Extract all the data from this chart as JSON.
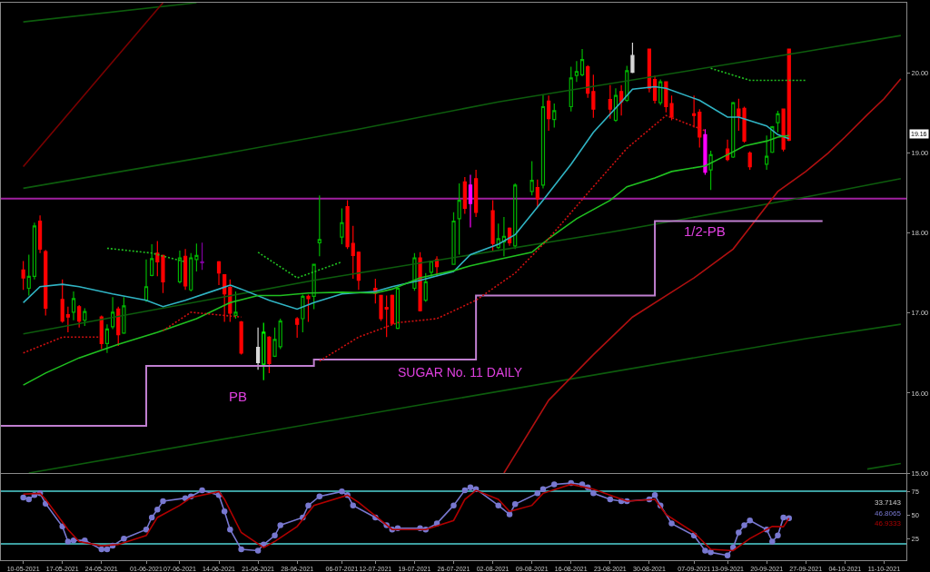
{
  "chart_data": [
    {
      "type": "candlestick",
      "x": [
        "2021-05-10",
        "2021-05-11",
        "2021-05-12",
        "2021-05-13",
        "2021-05-14",
        "2021-05-17",
        "2021-05-18",
        "2021-05-19",
        "2021-05-20",
        "2021-05-21",
        "2021-05-24",
        "2021-05-25",
        "2021-05-26",
        "2021-05-27",
        "2021-05-28",
        "2021-06-01",
        "2021-06-02",
        "2021-06-03",
        "2021-06-04",
        "2021-06-07",
        "2021-06-08",
        "2021-06-09",
        "2021-06-10",
        "2021-06-11",
        "2021-06-14",
        "2021-06-15",
        "2021-06-16",
        "2021-06-17",
        "2021-06-18",
        "2021-06-21",
        "2021-06-22",
        "2021-06-23",
        "2021-06-24",
        "2021-06-25",
        "2021-06-28",
        "2021-06-29",
        "2021-06-30",
        "2021-07-01",
        "2021-07-02",
        "2021-07-06",
        "2021-07-07",
        "2021-07-08",
        "2021-07-09",
        "2021-07-12",
        "2021-07-13",
        "2021-07-14",
        "2021-07-15",
        "2021-07-16",
        "2021-07-19",
        "2021-07-20",
        "2021-07-21",
        "2021-07-22",
        "2021-07-23",
        "2021-07-26",
        "2021-07-27",
        "2021-07-28",
        "2021-07-29",
        "2021-07-30",
        "2021-08-02",
        "2021-08-03",
        "2021-08-04",
        "2021-08-05",
        "2021-08-06",
        "2021-08-09",
        "2021-08-10",
        "2021-08-11",
        "2021-08-12",
        "2021-08-13",
        "2021-08-16",
        "2021-08-17",
        "2021-08-18",
        "2021-08-19",
        "2021-08-20",
        "2021-08-23",
        "2021-08-24",
        "2021-08-25",
        "2021-08-26",
        "2021-08-27",
        "2021-08-30",
        "2021-08-31",
        "2021-09-01",
        "2021-09-02",
        "2021-09-03",
        "2021-09-07",
        "2021-09-08",
        "2021-09-09",
        "2021-09-10",
        "2021-09-13",
        "2021-09-14",
        "2021-09-15",
        "2021-09-16",
        "2021-09-17",
        "2021-09-20",
        "2021-09-21",
        "2021-09-22",
        "2021-09-23",
        "2021-09-24"
      ],
      "ohlc": [
        [
          17.54,
          17.65,
          17.29,
          17.44
        ],
        [
          17.31,
          17.73,
          17.22,
          17.46
        ],
        [
          17.46,
          18.13,
          17.42,
          18.09
        ],
        [
          18.15,
          18.22,
          17.75,
          17.8
        ],
        [
          17.77,
          17.79,
          16.97,
          17.06
        ],
        [
          17.17,
          17.42,
          16.88,
          16.9
        ],
        [
          16.98,
          17.08,
          16.76,
          16.95
        ],
        [
          17.01,
          17.27,
          16.91,
          17.18
        ],
        [
          17.08,
          17.1,
          16.82,
          16.9
        ],
        [
          16.91,
          17.06,
          16.84,
          17.02
        ],
        [
          16.95,
          16.97,
          16.55,
          16.62
        ],
        [
          16.62,
          16.86,
          16.5,
          16.8
        ],
        [
          16.83,
          17.2,
          16.8,
          17.01
        ],
        [
          17.05,
          17.08,
          16.59,
          16.73
        ],
        [
          16.75,
          17.2,
          16.74,
          17.09
        ],
        [
          17.16,
          17.67,
          17.14,
          17.33
        ],
        [
          17.47,
          17.86,
          17.46,
          17.68
        ],
        [
          17.75,
          17.9,
          17.46,
          17.64
        ],
        [
          17.72,
          17.73,
          17.25,
          17.39
        ],
        [
          17.39,
          17.78,
          17.37,
          17.69
        ],
        [
          17.71,
          17.8,
          17.29,
          17.34
        ],
        [
          17.29,
          17.75,
          17.27,
          17.69
        ],
        [
          17.67,
          17.87,
          17.52,
          17.72
        ],
        [
          17.64,
          17.88,
          17.54,
          17.63
        ],
        [
          17.64,
          17.65,
          17.35,
          17.5
        ],
        [
          17.48,
          17.48,
          16.89,
          17.24
        ],
        [
          17.32,
          17.42,
          16.89,
          17.0
        ],
        [
          16.97,
          17.27,
          16.93,
          17.01
        ],
        [
          16.89,
          16.9,
          16.48,
          16.5
        ],
        [
          16.57,
          16.82,
          16.29,
          16.38
        ],
        [
          16.36,
          16.88,
          16.16,
          16.76
        ],
        [
          16.7,
          16.71,
          16.25,
          16.37
        ],
        [
          16.46,
          16.82,
          16.45,
          16.67
        ],
        [
          16.58,
          16.93,
          16.55,
          16.9
        ],
        [
          16.93,
          16.95,
          16.69,
          16.86
        ],
        [
          16.93,
          17.23,
          16.76,
          17.21
        ],
        [
          17.21,
          17.23,
          16.89,
          17.18
        ],
        [
          17.21,
          17.61,
          17.05,
          17.61
        ],
        [
          17.88,
          18.47,
          17.71,
          17.92
        ],
        [
          17.95,
          18.31,
          17.86,
          18.13
        ],
        [
          18.33,
          18.41,
          17.8,
          17.83
        ],
        [
          17.87,
          18.09,
          17.43,
          17.72
        ],
        [
          17.76,
          17.77,
          17.29,
          17.41
        ],
        [
          17.31,
          17.43,
          17.12,
          17.25
        ],
        [
          17.22,
          17.22,
          16.9,
          16.93
        ],
        [
          17.07,
          17.22,
          16.7,
          17.05
        ],
        [
          17.22,
          17.23,
          16.85,
          16.87
        ],
        [
          16.81,
          17.31,
          16.8,
          17.31
        ],
        [
          17.31,
          17.75,
          17.28,
          17.69
        ],
        [
          17.69,
          17.76,
          17.02,
          17.03
        ],
        [
          17.16,
          17.5,
          17.14,
          17.39
        ],
        [
          17.51,
          17.65,
          17.44,
          17.65
        ],
        [
          17.67,
          17.71,
          17.46,
          17.58
        ],
        [
          17.61,
          18.26,
          17.61,
          18.15
        ],
        [
          18.18,
          18.62,
          17.73,
          18.41
        ],
        [
          18.64,
          18.7,
          18.24,
          18.31
        ],
        [
          18.6,
          18.73,
          18.07,
          18.37
        ],
        [
          18.68,
          18.79,
          18.2,
          18.26
        ],
        [
          18.28,
          18.41,
          17.77,
          17.87
        ],
        [
          17.82,
          18.12,
          17.8,
          17.93
        ],
        [
          17.89,
          18.2,
          17.71,
          17.96
        ],
        [
          18.06,
          18.07,
          17.84,
          17.88
        ],
        [
          17.84,
          18.62,
          17.8,
          18.6
        ],
        [
          18.52,
          18.9,
          18.47,
          18.66
        ],
        [
          18.57,
          18.67,
          18.33,
          18.43
        ],
        [
          18.6,
          19.73,
          18.56,
          19.58
        ],
        [
          19.65,
          19.72,
          19.28,
          19.43
        ],
        [
          19.42,
          19.62,
          19.32,
          19.53
        ],
        [
          19.58,
          20.08,
          19.52,
          19.94
        ],
        [
          19.97,
          20.15,
          19.89,
          20.02
        ],
        [
          19.98,
          20.3,
          19.96,
          20.17
        ],
        [
          20.08,
          20.1,
          19.69,
          19.75
        ],
        [
          19.77,
          19.98,
          19.44,
          19.55
        ],
        [
          19.67,
          19.85,
          19.43,
          19.55
        ],
        [
          19.41,
          19.81,
          19.39,
          19.72
        ],
        [
          19.77,
          19.85,
          19.47,
          19.64
        ],
        [
          19.66,
          20.09,
          19.64,
          20.03
        ],
        [
          20.22,
          20.38,
          20.0,
          20.01
        ],
        [
          20.3,
          20.3,
          19.76,
          19.81
        ],
        [
          19.92,
          19.97,
          19.62,
          19.66
        ],
        [
          19.63,
          19.92,
          19.6,
          19.89
        ],
        [
          19.89,
          19.89,
          19.51,
          19.58
        ],
        [
          19.62,
          19.72,
          19.41,
          19.45
        ],
        [
          19.49,
          19.72,
          19.32,
          19.47
        ],
        [
          19.51,
          19.55,
          19.07,
          19.2
        ],
        [
          19.23,
          19.3,
          18.73,
          18.76
        ],
        [
          18.79,
          19.03,
          18.54,
          18.98
        ],
        [
          19.05,
          19.17,
          18.9,
          18.92
        ],
        [
          18.95,
          19.64,
          18.94,
          19.63
        ],
        [
          19.55,
          19.68,
          19.28,
          19.46
        ],
        [
          19.56,
          19.58,
          19.13,
          19.15
        ],
        [
          19.0,
          19.02,
          18.79,
          18.83
        ],
        [
          18.86,
          19.22,
          18.79,
          18.96
        ],
        [
          19.01,
          19.34,
          19.0,
          19.33
        ],
        [
          19.38,
          19.53,
          19.26,
          19.49
        ],
        [
          19.55,
          19.55,
          19.02,
          19.05
        ],
        [
          20.3,
          20.3,
          19.15,
          19.16
        ]
      ],
      "colors": [
        "#ff0000",
        "#00b400",
        "#00b400",
        "#ff0000",
        "#ff0000",
        "#ff0000",
        "#ff0000",
        "#00b400",
        "#ff0000",
        "#00b400",
        "#ff0000",
        "#00b400",
        "#00b400",
        "#ff0000",
        "#00b400",
        "#00b400",
        "#00b400",
        "#ff0000",
        "#ff0000",
        "#00b400",
        "#ff0000",
        "#00b400",
        "#00b400",
        "#8000a0",
        "#ff0000",
        "#ff0000",
        "#ff0000",
        "#00b400",
        "#ff0000",
        "#d8d8d8",
        "#00ff00",
        "#ff0000",
        "#00b400",
        "#00b400",
        "#ff0000",
        "#00b400",
        "#ff0000",
        "#00b400",
        "#00b400",
        "#00b400",
        "#ff0000",
        "#ff0000",
        "#ff0000",
        "#ff0000",
        "#ff0000",
        "#ff0000",
        "#ff0000",
        "#00b400",
        "#00b400",
        "#ff0000",
        "#00b400",
        "#00b400",
        "#ff0000",
        "#00b400",
        "#00b400",
        "#ff0000",
        "#ff00ff",
        "#ff0000",
        "#ff0000",
        "#00b400",
        "#00b400",
        "#ff0000",
        "#00b400",
        "#00b400",
        "#ff0000",
        "#00b400",
        "#ff0000",
        "#00b400",
        "#00b400",
        "#00b400",
        "#00b400",
        "#ff0000",
        "#ff0000",
        "#ff0000",
        "#00b400",
        "#ff0000",
        "#00b400",
        "#d8d8d8",
        "#ff0000",
        "#ff0000",
        "#00b400",
        "#ff0000",
        "#ff0000",
        "#ff0000",
        "#ff0000",
        "#ff00ff",
        "#00b400",
        "#ff0000",
        "#00b400",
        "#ff0000",
        "#ff0000",
        "#ff0000",
        "#00b400",
        "#00b400",
        "#00b400",
        "#ff0000",
        "#ff0000"
      ],
      "series": [
        {
          "type": "line",
          "color": "#0d5c0d",
          "x": [
            "2021-05-10",
            "2021-06-14",
            "2021-07-09",
            "2021-08-03",
            "2021-09-27",
            "2021-10-14"
          ],
          "values": [
            18.56,
            18.98,
            19.3,
            19.64,
            20.27,
            20.47
          ]
        },
        {
          "type": "line",
          "color": "#0d5c0d",
          "x": [
            "2021-05-10",
            "2021-06-10"
          ],
          "values": [
            20.64,
            20.88
          ]
        },
        {
          "type": "line",
          "color": "#0d5c0d",
          "x": [
            "2021-05-10",
            "2021-07-01",
            "2021-08-23",
            "2021-09-27",
            "2021-10-14"
          ],
          "values": [
            16.74,
            17.41,
            18.01,
            18.45,
            18.68
          ]
        },
        {
          "type": "line",
          "color": "#0d5c0d",
          "x": [
            "2021-05-11",
            "2021-07-19",
            "2021-09-27",
            "2021-10-14"
          ],
          "values": [
            15.0,
            15.84,
            16.68,
            16.86
          ]
        },
        {
          "type": "line",
          "color": "#0d5c0d",
          "x": [
            "2021-10-08",
            "2021-10-14"
          ],
          "values": [
            15.05,
            15.12
          ]
        },
        {
          "type": "line",
          "color": "#7a0000",
          "x": [
            "2021-05-10",
            "2021-06-04"
          ],
          "values": [
            18.83,
            20.88
          ]
        },
        {
          "type": "line",
          "color": "#b01010",
          "x": [
            "2021-08-04",
            "2021-08-12",
            "2021-08-20",
            "2021-08-27",
            "2021-09-07",
            "2021-09-14",
            "2021-09-22",
            "2021-09-27",
            "2021-10-01",
            "2021-10-04",
            "2021-10-08",
            "2021-10-11",
            "2021-10-14"
          ],
          "values": [
            15.0,
            15.91,
            16.48,
            16.95,
            17.44,
            17.8,
            18.52,
            18.77,
            19.0,
            19.2,
            19.48,
            19.68,
            19.93
          ]
        },
        {
          "type": "step",
          "color": "#c07fd0",
          "x": [
            "2021-05-06",
            "2021-06-01",
            "2021-07-01",
            "2021-07-30",
            "2021-08-31",
            "2021-09-30"
          ],
          "values": [
            15.59,
            16.34,
            16.42,
            17.22,
            18.15,
            18.15
          ]
        },
        {
          "type": "line",
          "color": "#30b4c4",
          "x": [
            "2021-05-10",
            "2021-05-13",
            "2021-05-17",
            "2021-05-20",
            "2021-05-26",
            "2021-06-01",
            "2021-06-04",
            "2021-06-08",
            "2021-06-14",
            "2021-06-16",
            "2021-06-18",
            "2021-06-23",
            "2021-06-28",
            "2021-07-01",
            "2021-07-06",
            "2021-07-12",
            "2021-07-15",
            "2021-07-20",
            "2021-07-26",
            "2021-07-29",
            "2021-08-03",
            "2021-08-06",
            "2021-08-11",
            "2021-08-16",
            "2021-08-20",
            "2021-08-25",
            "2021-08-27",
            "2021-08-31",
            "2021-09-02",
            "2021-09-08",
            "2021-09-13",
            "2021-09-15",
            "2021-09-20",
            "2021-09-22",
            "2021-09-24"
          ],
          "values": [
            17.13,
            17.33,
            17.36,
            17.33,
            17.24,
            17.16,
            17.08,
            17.16,
            17.3,
            17.35,
            17.3,
            17.16,
            17.05,
            17.13,
            17.24,
            17.27,
            17.33,
            17.41,
            17.52,
            17.73,
            17.86,
            17.98,
            18.41,
            18.86,
            19.26,
            19.64,
            19.8,
            19.83,
            19.81,
            19.66,
            19.45,
            19.45,
            19.34,
            19.23,
            19.18
          ]
        },
        {
          "type": "line",
          "color": "#20c020",
          "x": [
            "2021-05-10",
            "2021-05-14",
            "2021-05-20",
            "2021-05-27",
            "2021-06-03",
            "2021-06-10",
            "2021-06-16",
            "2021-06-21",
            "2021-06-25",
            "2021-06-30",
            "2021-07-06",
            "2021-07-12",
            "2021-07-15",
            "2021-07-20",
            "2021-07-26",
            "2021-07-29",
            "2021-08-03",
            "2021-08-09",
            "2021-08-12",
            "2021-08-17",
            "2021-08-23",
            "2021-08-26",
            "2021-08-31",
            "2021-09-03",
            "2021-09-09",
            "2021-09-13",
            "2021-09-16",
            "2021-09-20",
            "2021-09-22",
            "2021-09-24"
          ],
          "values": [
            16.1,
            16.25,
            16.44,
            16.61,
            16.76,
            16.93,
            17.13,
            17.22,
            17.22,
            17.25,
            17.26,
            17.25,
            17.3,
            17.44,
            17.53,
            17.59,
            17.67,
            17.76,
            17.93,
            18.18,
            18.41,
            18.58,
            18.69,
            18.77,
            18.84,
            18.98,
            19.09,
            19.15,
            19.2,
            19.22
          ]
        },
        {
          "type": "line",
          "color": "#d01010",
          "line_style": "dotted",
          "x": [
            "2021-05-10",
            "2021-05-17",
            "2021-05-24"
          ],
          "values": [
            16.5,
            16.7,
            16.7
          ]
        },
        {
          "type": "line",
          "color": "#d01010",
          "line_style": "dotted",
          "x": [
            "2021-06-04",
            "2021-06-09",
            "2021-06-18"
          ],
          "values": [
            16.78,
            17.01,
            16.95
          ]
        },
        {
          "type": "line",
          "color": "#d01010",
          "line_style": "dotted",
          "x": [
            "2021-07-02",
            "2021-07-09",
            "2021-07-16",
            "2021-07-23",
            "2021-07-30",
            "2021-08-06",
            "2021-08-12",
            "2021-08-19",
            "2021-08-26",
            "2021-09-02",
            "2021-09-09"
          ],
          "values": [
            16.4,
            16.7,
            16.88,
            16.93,
            17.16,
            17.5,
            17.93,
            18.5,
            19.06,
            19.47,
            19.28
          ]
        },
        {
          "type": "line",
          "color": "#20c020",
          "line_style": "dotted",
          "x": [
            "2021-05-25",
            "2021-06-02",
            "2021-06-08"
          ],
          "values": [
            17.81,
            17.75,
            17.64
          ]
        },
        {
          "type": "line",
          "color": "#20c020",
          "line_style": "dotted",
          "x": [
            "2021-06-21",
            "2021-06-28",
            "2021-07-06"
          ],
          "values": [
            17.76,
            17.44,
            17.64
          ]
        },
        {
          "type": "line",
          "color": "#20c020",
          "line_style": "dotted",
          "x": [
            "2021-09-10",
            "2021-09-17",
            "2021-09-27"
          ],
          "values": [
            20.06,
            19.91,
            19.91
          ]
        }
      ],
      "ref_lines": [
        {
          "axis": "y",
          "value": 18.43,
          "color": "#a020a0"
        }
      ],
      "annotations": [
        "PB",
        "SUGAR No. 11 DAILY",
        "1/2-PB",
        "19.16"
      ],
      "xlim": [
        "2021-05-06",
        "2021-10-15"
      ],
      "ylim": [
        15,
        20.88
      ],
      "yticks": [
        {
          "value": 15,
          "label": "15.00"
        },
        {
          "value": 16,
          "label": "16.00"
        },
        {
          "value": 17,
          "label": "17.00"
        },
        {
          "value": 18,
          "label": "18.00"
        },
        {
          "value": 19,
          "label": "19.00"
        },
        {
          "value": 20,
          "label": "20.00"
        }
      ],
      "tick_labels": "y"
    },
    {
      "type": "line",
      "series": [
        {
          "color": "#7878d0",
          "marker": "circle",
          "x": [
            "2021-05-10",
            "2021-05-11",
            "2021-05-12",
            "2021-05-13",
            "2021-05-14",
            "2021-05-17",
            "2021-05-18",
            "2021-05-19",
            "2021-05-21",
            "2021-05-24",
            "2021-05-25",
            "2021-05-26",
            "2021-05-28",
            "2021-06-01",
            "2021-06-02",
            "2021-06-03",
            "2021-06-04",
            "2021-06-08",
            "2021-06-09",
            "2021-06-11",
            "2021-06-14",
            "2021-06-15",
            "2021-06-16",
            "2021-06-18",
            "2021-06-21",
            "2021-06-22",
            "2021-06-24",
            "2021-06-25",
            "2021-06-29",
            "2021-06-30",
            "2021-07-02",
            "2021-07-06",
            "2021-07-07",
            "2021-07-08",
            "2021-07-12",
            "2021-07-14",
            "2021-07-15",
            "2021-07-16",
            "2021-07-20",
            "2021-07-21",
            "2021-07-23",
            "2021-07-26",
            "2021-07-28",
            "2021-07-29",
            "2021-07-30",
            "2021-08-03",
            "2021-08-05",
            "2021-08-06",
            "2021-08-10",
            "2021-08-11",
            "2021-08-13",
            "2021-08-16",
            "2021-08-18",
            "2021-08-19",
            "2021-08-20",
            "2021-08-23",
            "2021-08-25",
            "2021-08-26",
            "2021-08-30",
            "2021-08-31",
            "2021-09-01",
            "2021-09-03",
            "2021-09-07",
            "2021-09-09",
            "2021-09-10",
            "2021-09-13",
            "2021-09-14",
            "2021-09-15",
            "2021-09-16",
            "2021-09-17",
            "2021-09-20",
            "2021-09-21",
            "2021-09-22",
            "2021-09-23",
            "2021-09-24"
          ],
          "values": [
            68.4,
            66.5,
            70.9,
            72.8,
            62.1,
            38.2,
            22.5,
            23.7,
            23.7,
            14.3,
            14.3,
            18.1,
            25.6,
            35.0,
            47.6,
            55.8,
            64.6,
            67.8,
            69.6,
            75.9,
            70.9,
            53.9,
            35.0,
            14.3,
            13.0,
            19.3,
            28.8,
            39.5,
            47.6,
            60.2,
            69.6,
            74.7,
            70.9,
            60.2,
            47.6,
            39.5,
            35.0,
            36.3,
            36.3,
            35.0,
            41.3,
            60.2,
            75.9,
            79.1,
            77.2,
            60.2,
            50.8,
            61.5,
            72.8,
            77.2,
            82.2,
            83.5,
            82.2,
            79.1,
            72.8,
            66.5,
            64.6,
            64.6,
            66.5,
            70.9,
            60.2,
            41.3,
            28.8,
            13.0,
            11.2,
            8.0,
            16.2,
            31.9,
            39.5,
            44.5,
            35.0,
            22.5,
            28.8,
            47.6,
            46.8
          ]
        },
        {
          "color": "#b00000",
          "x": [
            "2021-05-10",
            "2021-05-13",
            "2021-05-14",
            "2021-05-18",
            "2021-05-20",
            "2021-05-24",
            "2021-05-27",
            "2021-06-01",
            "2021-06-03",
            "2021-06-07",
            "2021-06-09",
            "2021-06-14",
            "2021-06-15",
            "2021-06-18",
            "2021-06-22",
            "2021-06-24",
            "2021-06-28",
            "2021-07-01",
            "2021-07-07",
            "2021-07-09",
            "2021-07-13",
            "2021-07-15",
            "2021-07-21",
            "2021-07-26",
            "2021-07-28",
            "2021-07-30",
            "2021-08-03",
            "2021-08-05",
            "2021-08-09",
            "2021-08-11",
            "2021-08-16",
            "2021-08-20",
            "2021-08-26",
            "2021-08-31",
            "2021-09-02",
            "2021-09-07",
            "2021-09-10",
            "2021-09-14",
            "2021-09-17",
            "2021-09-21",
            "2021-09-23",
            "2021-09-24"
          ],
          "values": [
            72.0,
            72.8,
            66.5,
            35.0,
            22.5,
            18.1,
            19.3,
            28.8,
            47.6,
            60.2,
            68.4,
            74.7,
            66.5,
            31.9,
            16.2,
            22.5,
            38.2,
            60.2,
            70.9,
            63.4,
            44.5,
            35.0,
            35.0,
            44.5,
            66.5,
            75.9,
            66.5,
            53.9,
            60.2,
            72.8,
            82.2,
            77.2,
            64.6,
            66.5,
            50.8,
            31.9,
            14.3,
            13.0,
            25.6,
            38.2,
            38.0,
            46.9
          ]
        }
      ],
      "ref_lines": [
        {
          "axis": "y",
          "value": 75,
          "color": "#3c9ea0"
        },
        {
          "axis": "y",
          "value": 20,
          "color": "#3c9ea0"
        }
      ],
      "annotations": [
        "33.7143",
        "46.8065",
        "46.9333"
      ],
      "xlim": [
        "2021-05-06",
        "2021-10-15"
      ],
      "xticks": [
        {
          "value": "2021-05-10",
          "label": "10-05-2021"
        },
        {
          "value": "2021-05-17",
          "label": "17-05-2021"
        },
        {
          "value": "2021-05-24",
          "label": "24-05-2021"
        },
        {
          "value": "2021-06-01",
          "label": "01-06-2021"
        },
        {
          "value": "2021-06-07",
          "label": "07-06-2021"
        },
        {
          "value": "2021-06-14",
          "label": "14-06-2021"
        },
        {
          "value": "2021-06-21",
          "label": "21-06-2021"
        },
        {
          "value": "2021-06-28",
          "label": "28-06-2021"
        },
        {
          "value": "2021-07-06",
          "label": "06-07-2021"
        },
        {
          "value": "2021-07-12",
          "label": "12-07-2021"
        },
        {
          "value": "2021-07-19",
          "label": "19-07-2021"
        },
        {
          "value": "2021-07-26",
          "label": "26-07-2021"
        },
        {
          "value": "2021-08-02",
          "label": "02-08-2021"
        },
        {
          "value": "2021-08-09",
          "label": "09-08-2021"
        },
        {
          "value": "2021-08-16",
          "label": "16-08-2021"
        },
        {
          "value": "2021-08-23",
          "label": "23-08-2021"
        },
        {
          "value": "2021-08-30",
          "label": "30-08-2021"
        },
        {
          "value": "2021-09-07",
          "label": "07-09-2021"
        },
        {
          "value": "2021-09-13",
          "label": "13-09-2021"
        },
        {
          "value": "2021-09-20",
          "label": "20-09-2021"
        },
        {
          "value": "2021-09-27",
          "label": "27-09-2021"
        },
        {
          "value": "2021-10-04",
          "label": "04-10-2021"
        },
        {
          "value": "2021-10-11",
          "label": "11-10-2021"
        }
      ],
      "ylim": [
        3,
        94
      ],
      "yticks": [
        25,
        50,
        75
      ]
    }
  ]
}
